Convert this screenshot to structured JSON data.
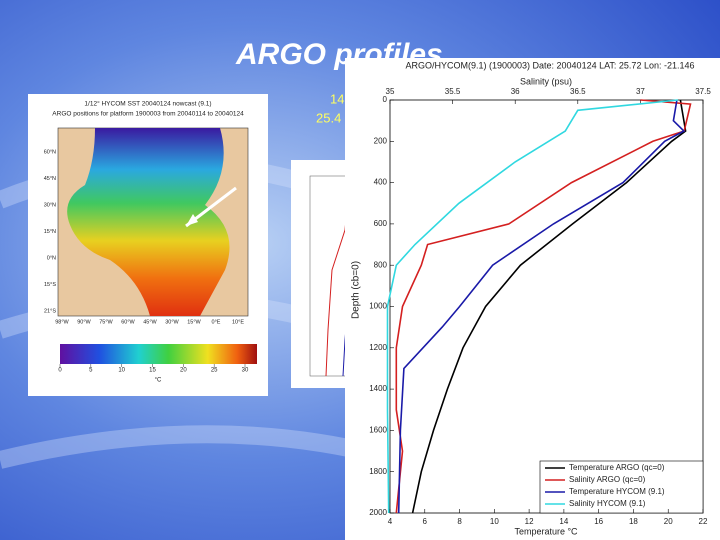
{
  "slide": {
    "title": "ARGO profiles",
    "note_lines": [
      "14",
      "25.4"
    ]
  },
  "map": {
    "title_lines": [
      "1/12° HYCOM SST 20040124 nowcast (9.1)",
      "ARGO positions for platform 1900003 from 20040114 to 20040124"
    ],
    "lat_labels": [
      "60°N",
      "45°N",
      "30°N",
      "15°N",
      "0°N",
      "15°S",
      "21°S"
    ],
    "lon_labels": [
      "98°W",
      "90°W",
      "75°W",
      "60°W",
      "45°W",
      "30°W",
      "15°W",
      "0°E",
      "10°E"
    ],
    "colorbar_ticks": [
      0,
      5,
      10,
      15,
      20,
      25,
      30
    ],
    "colorbar_unit": "°C"
  },
  "profile_chart": {
    "title": "ARGO/HYCOM(9.1) (1900003) Date: 20040124 LAT: 25.72 Lon: -21.146",
    "top_axis_label": "Salinity (psu)",
    "left_axis_label": "Depth (cb=0)",
    "bottom_axis_label": "Temperature °C",
    "depth_lim": [
      0,
      2000
    ],
    "depth_ticks": [
      0,
      200,
      400,
      600,
      800,
      1000,
      1200,
      1400,
      1600,
      1800,
      2000
    ],
    "temperature_lim": [
      4,
      22
    ],
    "temperature_ticks": [
      4,
      6,
      8,
      10,
      12,
      14,
      16,
      18,
      20,
      22
    ],
    "salinity_lim": [
      35,
      37.5
    ],
    "salinity_ticks": [
      35,
      35.5,
      36,
      36.5,
      37,
      37.5
    ],
    "series": [
      {
        "name": "Temperature ARGO (qc=0)",
        "color": "#000000",
        "axis": "temperature",
        "depth": [
          0,
          50,
          150,
          200,
          400,
          600,
          800,
          1000,
          1200,
          1400,
          1600,
          1800,
          2000
        ],
        "values": [
          20.7,
          20.8,
          21.0,
          20.2,
          17.6,
          14.5,
          11.5,
          9.5,
          8.2,
          7.3,
          6.5,
          5.8,
          5.3
        ]
      },
      {
        "name": "Salinity ARGO (qc=0)",
        "color": "#d42020",
        "axis": "salinity",
        "depth": [
          0,
          20,
          150,
          200,
          400,
          600,
          700,
          800,
          1000,
          1200,
          1500,
          1700,
          2000
        ],
        "values": [
          37.0,
          37.4,
          37.35,
          37.1,
          36.45,
          35.95,
          35.3,
          35.25,
          35.1,
          35.05,
          35.05,
          35.1,
          35.05
        ]
      },
      {
        "name": "Temperature HYCOM (9.1)",
        "color": "#1a1aa8",
        "axis": "temperature",
        "depth": [
          0,
          100,
          150,
          200,
          400,
          600,
          800,
          1000,
          1100,
          1300,
          1600,
          2000
        ],
        "values": [
          20.5,
          20.3,
          20.9,
          19.8,
          17.4,
          13.4,
          9.9,
          8.0,
          7.0,
          4.8,
          4.6,
          4.5
        ]
      },
      {
        "name": "Salinity HYCOM (9.1)",
        "color": "#30d8e0",
        "axis": "salinity",
        "depth": [
          0,
          50,
          100,
          150,
          300,
          500,
          700,
          800,
          1000,
          1500,
          2000
        ],
        "values": [
          37.3,
          36.5,
          36.45,
          36.4,
          36.0,
          35.55,
          35.2,
          35.05,
          34.98,
          34.98,
          34.99
        ]
      }
    ]
  }
}
